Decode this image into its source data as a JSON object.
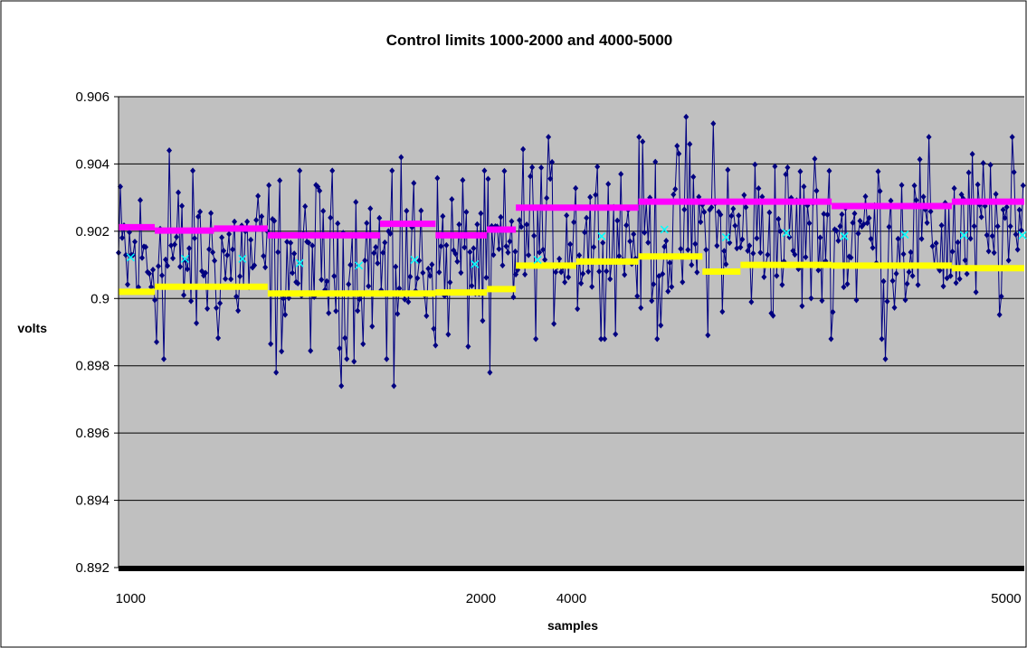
{
  "chart_data": {
    "type": "line",
    "title": "Control limits 1000-2000 and 4000-5000",
    "xlabel": "samples",
    "ylabel": "volts",
    "ylim": [
      0.892,
      0.906
    ],
    "yticks": [
      0.892,
      0.894,
      0.896,
      0.898,
      0.9,
      0.902,
      0.904,
      0.906
    ],
    "ytick_labels": [
      "0.892",
      "0.894",
      "0.896",
      "0.898",
      "0.9",
      "0.902",
      "0.904",
      "0.906"
    ],
    "xlim": [
      0,
      1500
    ],
    "xticks": [
      20,
      600,
      750,
      1470
    ],
    "xtick_labels": [
      "1000",
      "2000",
      "4000",
      "5000"
    ],
    "grid": true,
    "legend": "none",
    "colors": {
      "data": "#000080",
      "mean": "#00FFFF",
      "ucl": "#FF00FF",
      "lcl": "#FFFF00",
      "plot_bg": "#C0C0C0"
    },
    "series": [
      {
        "role": "upper-control-limit",
        "segments": [
          {
            "x0": 0,
            "x1": 60,
            "y": 0.90212
          },
          {
            "x0": 60,
            "x1": 158,
            "y": 0.90202
          },
          {
            "x0": 158,
            "x1": 247,
            "y": 0.90208
          },
          {
            "x0": 247,
            "x1": 433,
            "y": 0.90188
          },
          {
            "x0": 433,
            "x1": 525,
            "y": 0.90222
          },
          {
            "x0": 525,
            "x1": 610,
            "y": 0.90188
          },
          {
            "x0": 610,
            "x1": 658,
            "y": 0.90205
          },
          {
            "x0": 658,
            "x1": 861,
            "y": 0.9027
          },
          {
            "x0": 861,
            "x1": 1181,
            "y": 0.90288
          },
          {
            "x0": 1181,
            "x1": 1380,
            "y": 0.90275
          },
          {
            "x0": 1380,
            "x1": 1500,
            "y": 0.90288
          }
        ]
      },
      {
        "role": "lower-control-limit",
        "segments": [
          {
            "x0": 0,
            "x1": 60,
            "y": 0.9002
          },
          {
            "x0": 60,
            "x1": 158,
            "y": 0.90035
          },
          {
            "x0": 158,
            "x1": 247,
            "y": 0.90035
          },
          {
            "x0": 247,
            "x1": 433,
            "y": 0.90015
          },
          {
            "x0": 433,
            "x1": 525,
            "y": 0.90015
          },
          {
            "x0": 525,
            "x1": 610,
            "y": 0.90018
          },
          {
            "x0": 610,
            "x1": 658,
            "y": 0.90028
          },
          {
            "x0": 658,
            "x1": 758,
            "y": 0.90098
          },
          {
            "x0": 758,
            "x1": 861,
            "y": 0.9011
          },
          {
            "x0": 861,
            "x1": 967,
            "y": 0.90125
          },
          {
            "x0": 967,
            "x1": 1030,
            "y": 0.9008
          },
          {
            "x0": 1030,
            "x1": 1181,
            "y": 0.901
          },
          {
            "x0": 1181,
            "x1": 1380,
            "y": 0.90098
          },
          {
            "x0": 1380,
            "x1": 1500,
            "y": 0.9009
          }
        ]
      },
      {
        "role": "subgroup-means",
        "points": [
          {
            "x": 20,
            "y": 0.90122
          },
          {
            "x": 110,
            "y": 0.90118
          },
          {
            "x": 205,
            "y": 0.90118
          },
          {
            "x": 300,
            "y": 0.90105
          },
          {
            "x": 398,
            "y": 0.90098
          },
          {
            "x": 490,
            "y": 0.90115
          },
          {
            "x": 590,
            "y": 0.90102
          },
          {
            "x": 694,
            "y": 0.90115
          },
          {
            "x": 800,
            "y": 0.90185
          },
          {
            "x": 904,
            "y": 0.90205
          },
          {
            "x": 1006,
            "y": 0.90182
          },
          {
            "x": 1106,
            "y": 0.90195
          },
          {
            "x": 1202,
            "y": 0.90185
          },
          {
            "x": 1302,
            "y": 0.9019
          },
          {
            "x": 1400,
            "y": 0.90188
          },
          {
            "x": 1497,
            "y": 0.90188
          }
        ]
      },
      {
        "role": "samples",
        "description_of_values": "noisy sample voltages",
        "segments": [
          {
            "x0": 0,
            "x1": 658,
            "center": 0.90112,
            "min": 0.8974,
            "max": 0.9044
          },
          {
            "x0": 658,
            "x1": 1500,
            "center": 0.90188,
            "min": 0.8982,
            "max": 0.9054
          }
        ],
        "peaks": [
          {
            "x": 75,
            "y": 0.8982
          },
          {
            "x": 83,
            "y": 0.9044
          },
          {
            "x": 260,
            "y": 0.8978
          },
          {
            "x": 370,
            "y": 0.8974
          },
          {
            "x": 455,
            "y": 0.8974
          },
          {
            "x": 443,
            "y": 0.8982
          },
          {
            "x": 468,
            "y": 0.9042
          },
          {
            "x": 615,
            "y": 0.8978
          },
          {
            "x": 940,
            "y": 0.9054
          },
          {
            "x": 1270,
            "y": 0.8982
          },
          {
            "x": 890,
            "y": 0.8988
          },
          {
            "x": 985,
            "y": 0.9052
          }
        ]
      }
    ]
  }
}
